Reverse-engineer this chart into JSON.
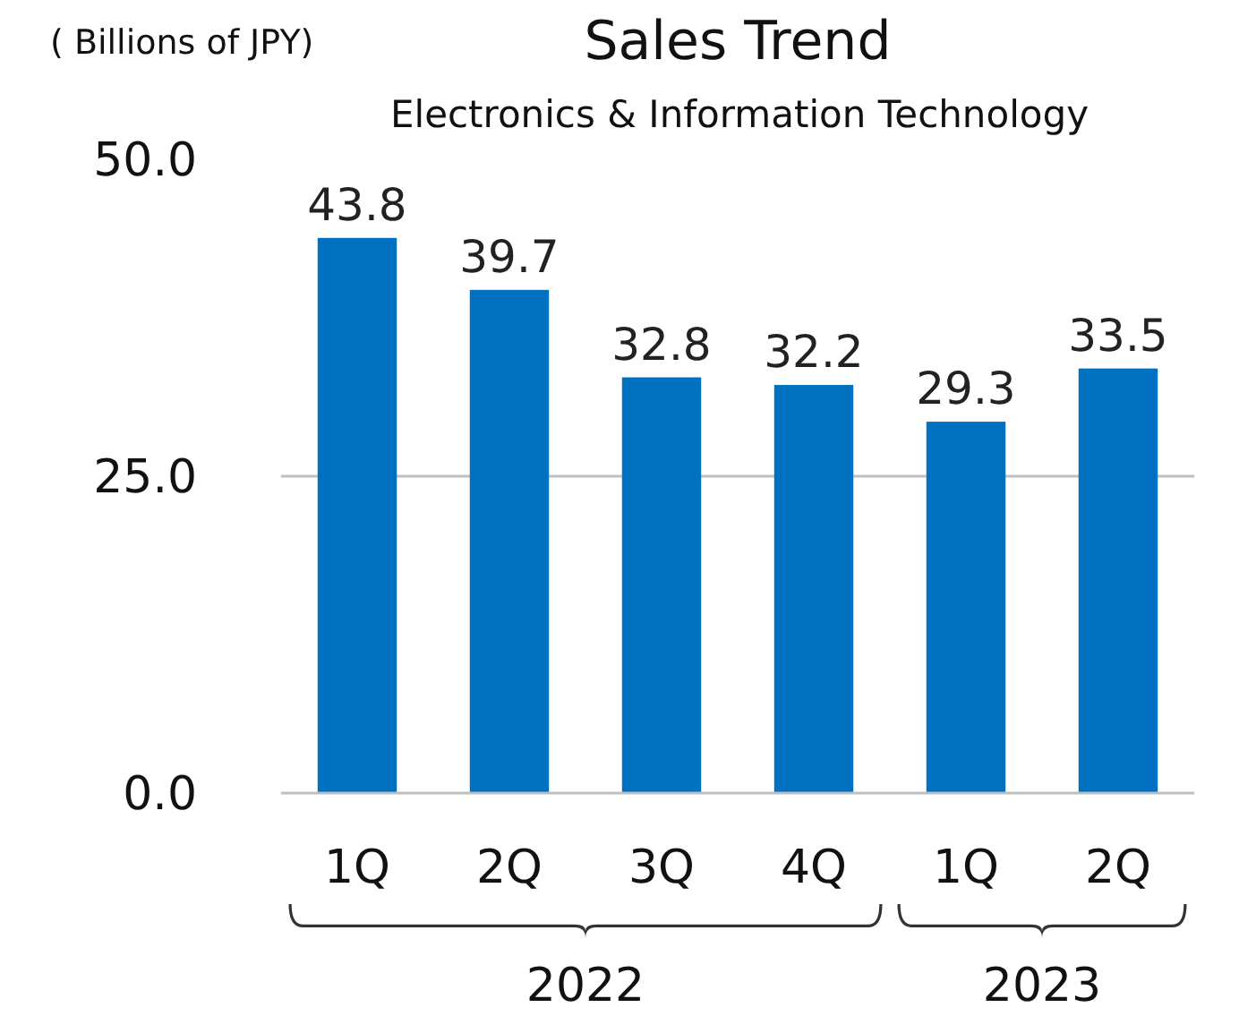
{
  "chart_data": {
    "type": "bar",
    "title": "Sales Trend",
    "subtitle": "Electronics & Information Technology",
    "ylabel": "( Billions of JPY)",
    "categories": [
      "1Q",
      "2Q",
      "3Q",
      "4Q",
      "1Q",
      "2Q"
    ],
    "values": [
      43.8,
      39.7,
      32.8,
      32.2,
      29.3,
      33.5
    ],
    "color": "#0070c0",
    "ylim": [
      0,
      50
    ],
    "yticks": [
      {
        "value": 0,
        "label": "0.0"
      },
      {
        "value": 25,
        "label": "25.0"
      },
      {
        "value": 50,
        "label": "50.0"
      }
    ],
    "grid": "y",
    "data_labels": true,
    "annotations": [
      "2022",
      "2023"
    ]
  }
}
